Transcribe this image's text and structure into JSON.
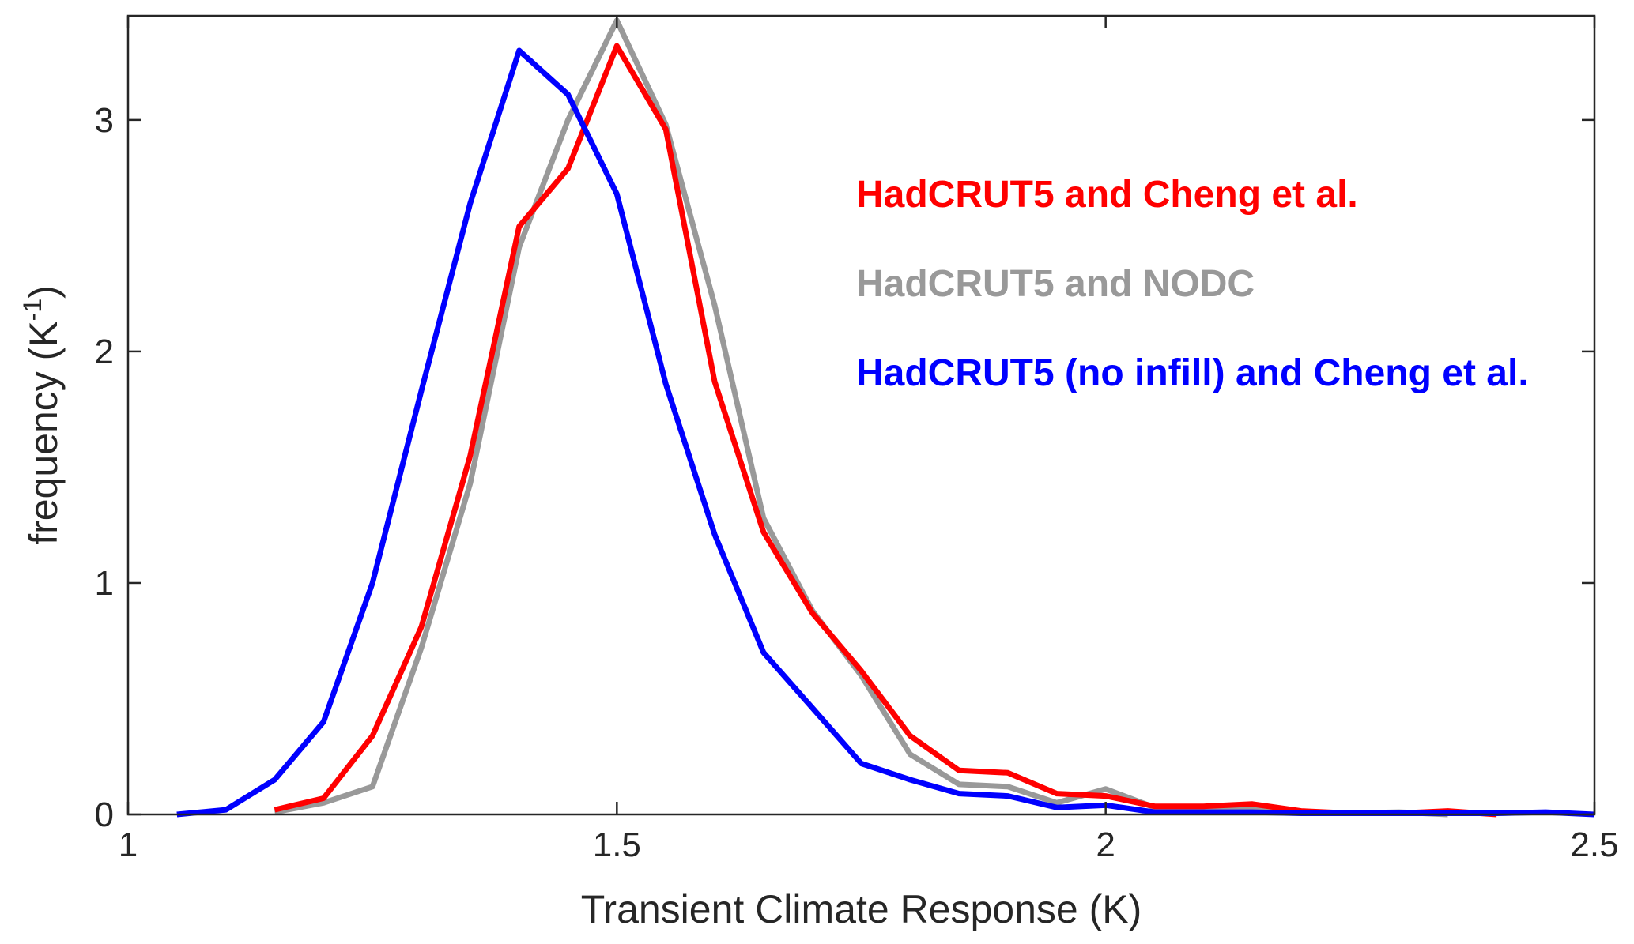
{
  "chart_data": {
    "type": "line",
    "xlabel": "Transient Climate Response  (K)",
    "ylabel": "frequency (K",
    "ylabel_unit_exponent": "-1",
    "ylabel_close": ")",
    "xlim": [
      1,
      2.5
    ],
    "ylim": [
      0,
      3.45
    ],
    "xticks": [
      1,
      1.5,
      2,
      2.5
    ],
    "xtick_labels": [
      "1",
      "1.5",
      "2",
      "2.5"
    ],
    "yticks": [
      0,
      1,
      2,
      3
    ],
    "ytick_labels": [
      "0",
      "1",
      "2",
      "3"
    ],
    "grid": false,
    "legend_position": "top-right",
    "series": [
      {
        "name": "HadCRUT5 and NODC",
        "color": "#999999",
        "x": [
          1.15,
          1.2,
          1.25,
          1.3,
          1.35,
          1.4,
          1.45,
          1.5,
          1.55,
          1.6,
          1.65,
          1.7,
          1.75,
          1.8,
          1.85,
          1.9,
          1.95,
          2.0,
          2.05,
          2.1,
          2.15,
          2.2,
          2.25,
          2.3,
          2.35
        ],
        "values": [
          0.01,
          0.05,
          0.12,
          0.72,
          1.43,
          2.45,
          3.0,
          3.43,
          2.98,
          2.2,
          1.28,
          0.88,
          0.6,
          0.26,
          0.13,
          0.12,
          0.05,
          0.11,
          0.03,
          0.03,
          0.03,
          0.01,
          0.005,
          0.01,
          0.0
        ]
      },
      {
        "name": "HadCRUT5 and Cheng et al.",
        "color": "#ff0000",
        "x": [
          1.15,
          1.2,
          1.25,
          1.3,
          1.35,
          1.4,
          1.45,
          1.5,
          1.55,
          1.6,
          1.65,
          1.7,
          1.75,
          1.8,
          1.85,
          1.9,
          1.95,
          2.0,
          2.05,
          2.1,
          2.15,
          2.2,
          2.25,
          2.3,
          2.35,
          2.4
        ],
        "values": [
          0.02,
          0.07,
          0.34,
          0.81,
          1.55,
          2.54,
          2.79,
          3.32,
          2.96,
          1.87,
          1.22,
          0.87,
          0.62,
          0.34,
          0.19,
          0.18,
          0.09,
          0.08,
          0.035,
          0.035,
          0.045,
          0.015,
          0.005,
          0.005,
          0.015,
          0.0
        ]
      },
      {
        "name": "HadCRUT5 (no infill) and Cheng et al.",
        "color": "#0000ff",
        "x": [
          1.05,
          1.1,
          1.15,
          1.2,
          1.25,
          1.3,
          1.35,
          1.4,
          1.45,
          1.5,
          1.55,
          1.6,
          1.65,
          1.7,
          1.75,
          1.8,
          1.85,
          1.9,
          1.95,
          2.0,
          2.05,
          2.1,
          2.15,
          2.2,
          2.25,
          2.3,
          2.35,
          2.4,
          2.45,
          2.5
        ],
        "values": [
          0.0,
          0.02,
          0.15,
          0.4,
          1.0,
          1.83,
          2.64,
          3.3,
          3.11,
          2.68,
          1.86,
          1.21,
          0.7,
          0.46,
          0.22,
          0.15,
          0.09,
          0.08,
          0.03,
          0.04,
          0.01,
          0.01,
          0.01,
          0.005,
          0.005,
          0.005,
          0.005,
          0.005,
          0.01,
          0.0
        ]
      }
    ]
  },
  "legend": [
    {
      "label": "HadCRUT5 and Cheng et al.",
      "color": "#ff0000"
    },
    {
      "label": "HadCRUT5 and NODC",
      "color": "#999999"
    },
    {
      "label": "HadCRUT5 (no infill) and Cheng et al.",
      "color": "#0000ff"
    }
  ]
}
